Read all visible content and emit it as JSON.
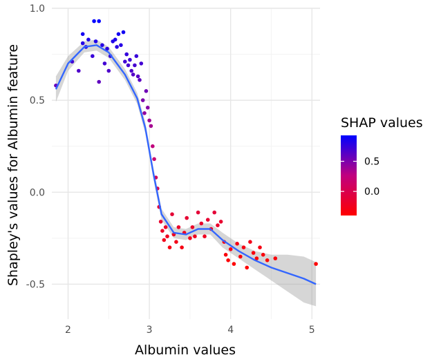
{
  "chart_data": {
    "type": "scatter",
    "xlabel": "Albumin values",
    "ylabel": "Shapley's values for Albumin feature",
    "xlim": [
      1.8,
      5.1
    ],
    "ylim": [
      -0.69,
      1.0
    ],
    "x_ticks": [
      2,
      3,
      4,
      5
    ],
    "y_ticks": [
      -0.5,
      0.0,
      0.5,
      1.0
    ],
    "x_tick_labels": [
      "2",
      "3",
      "4",
      "5"
    ],
    "y_tick_labels": [
      "-0.5",
      "0.0",
      "0.5",
      "1.0"
    ],
    "grid": true,
    "legend": {
      "title": "SHAP values",
      "placement": "right",
      "type": "colorbar",
      "range": [
        -0.4,
        0.93
      ],
      "ticks": [
        0.0,
        0.5
      ],
      "tick_labels": [
        "0.0",
        "0.5"
      ],
      "color_low": "#FF0000",
      "color_high": "#0000FF"
    },
    "points": [
      [
        1.85,
        0.58
      ],
      [
        2.05,
        0.71
      ],
      [
        2.13,
        0.66
      ],
      [
        2.18,
        0.86
      ],
      [
        2.18,
        0.81
      ],
      [
        2.22,
        0.79
      ],
      [
        2.25,
        0.83
      ],
      [
        2.3,
        0.74
      ],
      [
        2.32,
        0.93
      ],
      [
        2.34,
        0.82
      ],
      [
        2.38,
        0.93
      ],
      [
        2.38,
        0.6
      ],
      [
        2.42,
        0.8
      ],
      [
        2.45,
        0.7
      ],
      [
        2.48,
        0.78
      ],
      [
        2.5,
        0.66
      ],
      [
        2.52,
        0.74
      ],
      [
        2.55,
        0.82
      ],
      [
        2.58,
        0.83
      ],
      [
        2.6,
        0.79
      ],
      [
        2.62,
        0.86
      ],
      [
        2.65,
        0.8
      ],
      [
        2.68,
        0.87
      ],
      [
        2.7,
        0.71
      ],
      [
        2.72,
        0.75
      ],
      [
        2.74,
        0.69
      ],
      [
        2.76,
        0.72
      ],
      [
        2.78,
        0.66
      ],
      [
        2.8,
        0.64
      ],
      [
        2.82,
        0.69
      ],
      [
        2.84,
        0.74
      ],
      [
        2.86,
        0.63
      ],
      [
        2.88,
        0.61
      ],
      [
        2.9,
        0.7
      ],
      [
        2.92,
        0.5
      ],
      [
        2.94,
        0.43
      ],
      [
        2.96,
        0.55
      ],
      [
        2.98,
        0.46
      ],
      [
        3.0,
        0.39
      ],
      [
        3.02,
        0.36
      ],
      [
        3.04,
        0.25
      ],
      [
        3.06,
        0.18
      ],
      [
        3.08,
        0.08
      ],
      [
        3.1,
        0.02
      ],
      [
        3.12,
        -0.08
      ],
      [
        3.14,
        -0.16
      ],
      [
        3.16,
        -0.21
      ],
      [
        3.18,
        -0.26
      ],
      [
        3.2,
        -0.19
      ],
      [
        3.22,
        -0.24
      ],
      [
        3.25,
        -0.3
      ],
      [
        3.28,
        -0.12
      ],
      [
        3.3,
        -0.23
      ],
      [
        3.33,
        -0.27
      ],
      [
        3.36,
        -0.19
      ],
      [
        3.4,
        -0.3
      ],
      [
        3.43,
        -0.22
      ],
      [
        3.46,
        -0.14
      ],
      [
        3.5,
        -0.25
      ],
      [
        3.53,
        -0.19
      ],
      [
        3.56,
        -0.24
      ],
      [
        3.6,
        -0.11
      ],
      [
        3.64,
        -0.17
      ],
      [
        3.68,
        -0.24
      ],
      [
        3.72,
        -0.15
      ],
      [
        3.76,
        -0.2
      ],
      [
        3.8,
        -0.11
      ],
      [
        3.84,
        -0.18
      ],
      [
        3.88,
        -0.16
      ],
      [
        3.92,
        -0.27
      ],
      [
        3.94,
        -0.34
      ],
      [
        3.97,
        -0.37
      ],
      [
        4.0,
        -0.31
      ],
      [
        4.04,
        -0.39
      ],
      [
        4.08,
        -0.28
      ],
      [
        4.12,
        -0.35
      ],
      [
        4.16,
        -0.3
      ],
      [
        4.2,
        -0.41
      ],
      [
        4.24,
        -0.27
      ],
      [
        4.28,
        -0.33
      ],
      [
        4.32,
        -0.36
      ],
      [
        4.36,
        -0.3
      ],
      [
        4.4,
        -0.34
      ],
      [
        4.45,
        -0.37
      ],
      [
        4.55,
        -0.36
      ],
      [
        5.05,
        -0.39
      ]
    ],
    "smooth_line": {
      "x": [
        1.85,
        2.0,
        2.2,
        2.35,
        2.5,
        2.7,
        2.85,
        2.95,
        3.05,
        3.15,
        3.3,
        3.45,
        3.6,
        3.75,
        3.9,
        4.1,
        4.3,
        4.5,
        4.7,
        4.9,
        5.05
      ],
      "y": [
        0.56,
        0.7,
        0.79,
        0.8,
        0.76,
        0.64,
        0.51,
        0.35,
        0.1,
        -0.12,
        -0.22,
        -0.23,
        -0.2,
        -0.2,
        -0.26,
        -0.32,
        -0.37,
        -0.41,
        -0.44,
        -0.47,
        -0.5
      ]
    },
    "band": {
      "x": [
        1.85,
        2.0,
        2.2,
        2.35,
        2.5,
        2.7,
        2.85,
        2.95,
        3.05,
        3.15,
        3.3,
        3.45,
        3.6,
        3.75,
        3.9,
        4.1,
        4.3,
        4.5,
        4.7,
        4.9,
        5.05
      ],
      "lower": [
        0.49,
        0.66,
        0.76,
        0.77,
        0.73,
        0.61,
        0.48,
        0.32,
        0.07,
        -0.15,
        -0.25,
        -0.26,
        -0.23,
        -0.23,
        -0.3,
        -0.36,
        -0.42,
        -0.48,
        -0.54,
        -0.6,
        -0.62
      ],
      "upper": [
        0.63,
        0.74,
        0.82,
        0.83,
        0.79,
        0.67,
        0.54,
        0.38,
        0.13,
        -0.09,
        -0.19,
        -0.2,
        -0.17,
        -0.17,
        -0.22,
        -0.28,
        -0.32,
        -0.34,
        -0.34,
        -0.35,
        -0.38
      ]
    }
  }
}
